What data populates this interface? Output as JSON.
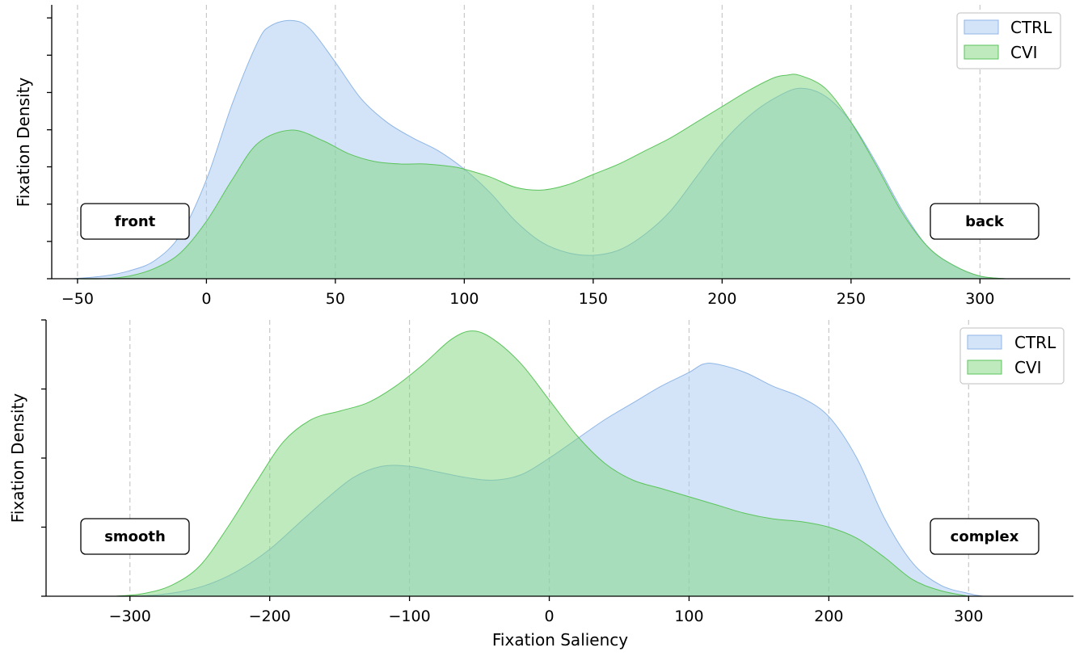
{
  "legend": [
    "CTRL",
    "CVI"
  ],
  "colors": {
    "CTRL": "#a7c9f2",
    "CVI": "#7ed67e",
    "CTRL_edge": "#8fb6e6",
    "CVI_edge": "#5cc45c"
  },
  "chart_data": [
    {
      "type": "area",
      "xlabel": "",
      "ylabel": "Fixation Density",
      "xlim": [
        -60,
        335
      ],
      "ylim": [
        0,
        1.05
      ],
      "xticks": [
        -50,
        0,
        50,
        100,
        150,
        200,
        250,
        300
      ],
      "xtick_labels": [
        "−50",
        "0",
        "50",
        "100",
        "150",
        "200",
        "250",
        "300"
      ],
      "yticks": [
        0,
        0.143,
        0.286,
        0.429,
        0.571,
        0.714,
        0.857,
        1.0
      ],
      "grid": "vertical-dashed",
      "legend_position": "top-right",
      "annotations": [
        "front",
        "back"
      ],
      "series": [
        {
          "name": "CTRL",
          "x": [
            -52,
            -40,
            -30,
            -20,
            -10,
            0,
            10,
            20,
            25,
            33,
            40,
            50,
            60,
            70,
            80,
            90,
            100,
            110,
            120,
            130,
            140,
            150,
            160,
            170,
            180,
            190,
            200,
            210,
            220,
            230,
            240,
            250,
            260,
            270,
            280,
            290,
            300,
            310
          ],
          "y": [
            0.0,
            0.01,
            0.03,
            0.07,
            0.17,
            0.38,
            0.67,
            0.91,
            0.97,
            0.99,
            0.96,
            0.83,
            0.69,
            0.6,
            0.54,
            0.49,
            0.42,
            0.33,
            0.22,
            0.14,
            0.1,
            0.09,
            0.11,
            0.17,
            0.26,
            0.39,
            0.52,
            0.62,
            0.69,
            0.73,
            0.7,
            0.6,
            0.44,
            0.26,
            0.12,
            0.05,
            0.01,
            0.0
          ]
        },
        {
          "name": "CVI",
          "x": [
            -52,
            -40,
            -30,
            -20,
            -10,
            0,
            10,
            20,
            33,
            45,
            55,
            65,
            75,
            85,
            95,
            100,
            110,
            120,
            130,
            140,
            150,
            160,
            170,
            180,
            190,
            200,
            210,
            220,
            225,
            230,
            240,
            250,
            260,
            270,
            280,
            290,
            300,
            310
          ],
          "y": [
            0.0,
            0.0,
            0.01,
            0.04,
            0.1,
            0.22,
            0.38,
            0.52,
            0.57,
            0.53,
            0.48,
            0.45,
            0.44,
            0.44,
            0.43,
            0.42,
            0.39,
            0.35,
            0.34,
            0.36,
            0.4,
            0.44,
            0.49,
            0.54,
            0.6,
            0.66,
            0.72,
            0.77,
            0.78,
            0.78,
            0.73,
            0.6,
            0.43,
            0.25,
            0.12,
            0.05,
            0.01,
            0.0
          ]
        }
      ]
    },
    {
      "type": "area",
      "xlabel": "Fixation Saliency",
      "ylabel": "Fixation Density",
      "xlim": [
        -360,
        375
      ],
      "ylim": [
        0,
        1.0
      ],
      "xticks": [
        -300,
        -200,
        -100,
        0,
        100,
        200,
        300
      ],
      "xtick_labels": [
        "−300",
        "−200",
        "−100",
        "0",
        "100",
        "200",
        "300"
      ],
      "yticks": [
        0,
        0.25,
        0.5,
        0.75,
        1.0
      ],
      "grid": "vertical-dashed",
      "legend_position": "top-right",
      "annotations": [
        "smooth",
        "complex"
      ],
      "series": [
        {
          "name": "CTRL",
          "x": [
            -300,
            -280,
            -260,
            -240,
            -220,
            -200,
            -180,
            -160,
            -140,
            -120,
            -100,
            -80,
            -60,
            -40,
            -20,
            0,
            20,
            40,
            60,
            80,
            100,
            110,
            120,
            140,
            160,
            180,
            200,
            220,
            240,
            260,
            280,
            300,
            310
          ],
          "y": [
            0.0,
            0.005,
            0.02,
            0.05,
            0.1,
            0.17,
            0.26,
            0.35,
            0.43,
            0.47,
            0.47,
            0.45,
            0.43,
            0.42,
            0.44,
            0.5,
            0.57,
            0.64,
            0.7,
            0.76,
            0.81,
            0.84,
            0.84,
            0.81,
            0.76,
            0.72,
            0.65,
            0.5,
            0.28,
            0.12,
            0.04,
            0.01,
            0.0
          ]
        },
        {
          "name": "CVI",
          "x": [
            -310,
            -290,
            -270,
            -250,
            -230,
            -210,
            -190,
            -170,
            -150,
            -130,
            -110,
            -90,
            -70,
            -55,
            -40,
            -20,
            0,
            20,
            40,
            60,
            80,
            100,
            120,
            140,
            160,
            180,
            200,
            220,
            240,
            260,
            280,
            300
          ],
          "y": [
            0.0,
            0.01,
            0.04,
            0.11,
            0.25,
            0.41,
            0.56,
            0.64,
            0.67,
            0.7,
            0.76,
            0.84,
            0.93,
            0.96,
            0.93,
            0.84,
            0.71,
            0.58,
            0.48,
            0.42,
            0.39,
            0.36,
            0.33,
            0.3,
            0.28,
            0.27,
            0.25,
            0.21,
            0.14,
            0.06,
            0.02,
            0.0
          ]
        }
      ]
    }
  ]
}
